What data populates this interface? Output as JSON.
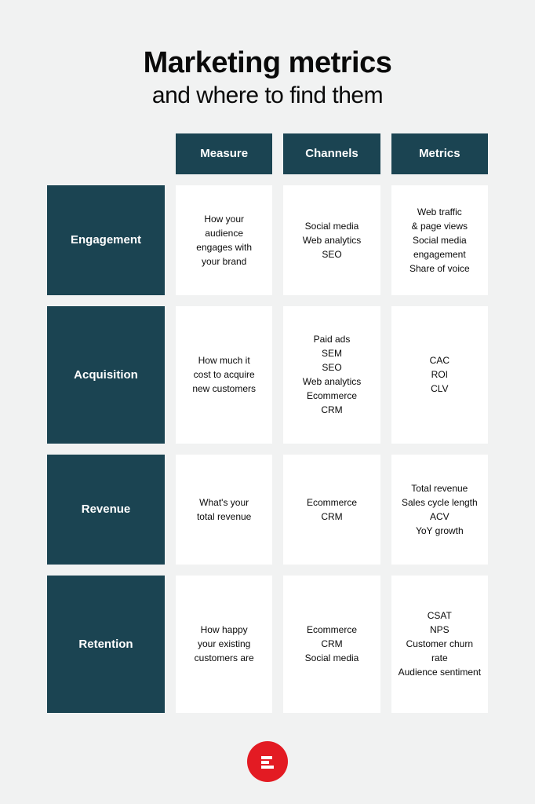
{
  "title": "Marketing metrics",
  "subtitle": "and where to find them",
  "colors": {
    "page_bg": "#f1f2f2",
    "header_bg": "#1b4452",
    "header_text": "#ffffff",
    "cell_bg": "#ffffff",
    "cell_text": "#0a0a0a",
    "logo_bg": "#e31b23",
    "logo_fg": "#ffffff"
  },
  "typography": {
    "title_fontsize": 38,
    "title_weight": 700,
    "subtitle_fontsize": 30,
    "subtitle_weight": 400,
    "header_fontsize": 15,
    "header_weight": 600,
    "cell_fontsize": 12,
    "cell_weight": 500
  },
  "layout": {
    "grid_columns": "150px 1fr 1fr 1fr",
    "gap": 14,
    "row_min_height": 140,
    "tall_row_min_height": 175,
    "col_header_height": 52
  },
  "columns": [
    "Measure",
    "Channels",
    "Metrics"
  ],
  "rows": [
    {
      "label": "Engagement",
      "tall": false,
      "cells": [
        [
          "How your",
          "audience",
          "engages with",
          "your brand"
        ],
        [
          "Social media",
          "Web analytics",
          "SEO"
        ],
        [
          "Web traffic",
          "& page views",
          "Social media",
          "engagement",
          "Share of voice"
        ]
      ]
    },
    {
      "label": "Acquisition",
      "tall": true,
      "cells": [
        [
          "How much it",
          "cost to acquire",
          "new customers"
        ],
        [
          "Paid ads",
          "SEM",
          "SEO",
          "Web analytics",
          "Ecommerce",
          "CRM"
        ],
        [
          "CAC",
          "ROI",
          "CLV"
        ]
      ]
    },
    {
      "label": "Revenue",
      "tall": false,
      "cells": [
        [
          "What's your",
          "total revenue"
        ],
        [
          "Ecommerce",
          "CRM"
        ],
        [
          "Total revenue",
          "Sales cycle length",
          "ACV",
          "YoY growth"
        ]
      ]
    },
    {
      "label": "Retention",
      "tall": true,
      "cells": [
        [
          "How happy",
          "your existing",
          "customers are"
        ],
        [
          "Ecommerce",
          "CRM",
          "Social media"
        ],
        [
          "CSAT",
          "NPS",
          "Customer churn rate",
          "Audience sentiment"
        ]
      ]
    }
  ]
}
